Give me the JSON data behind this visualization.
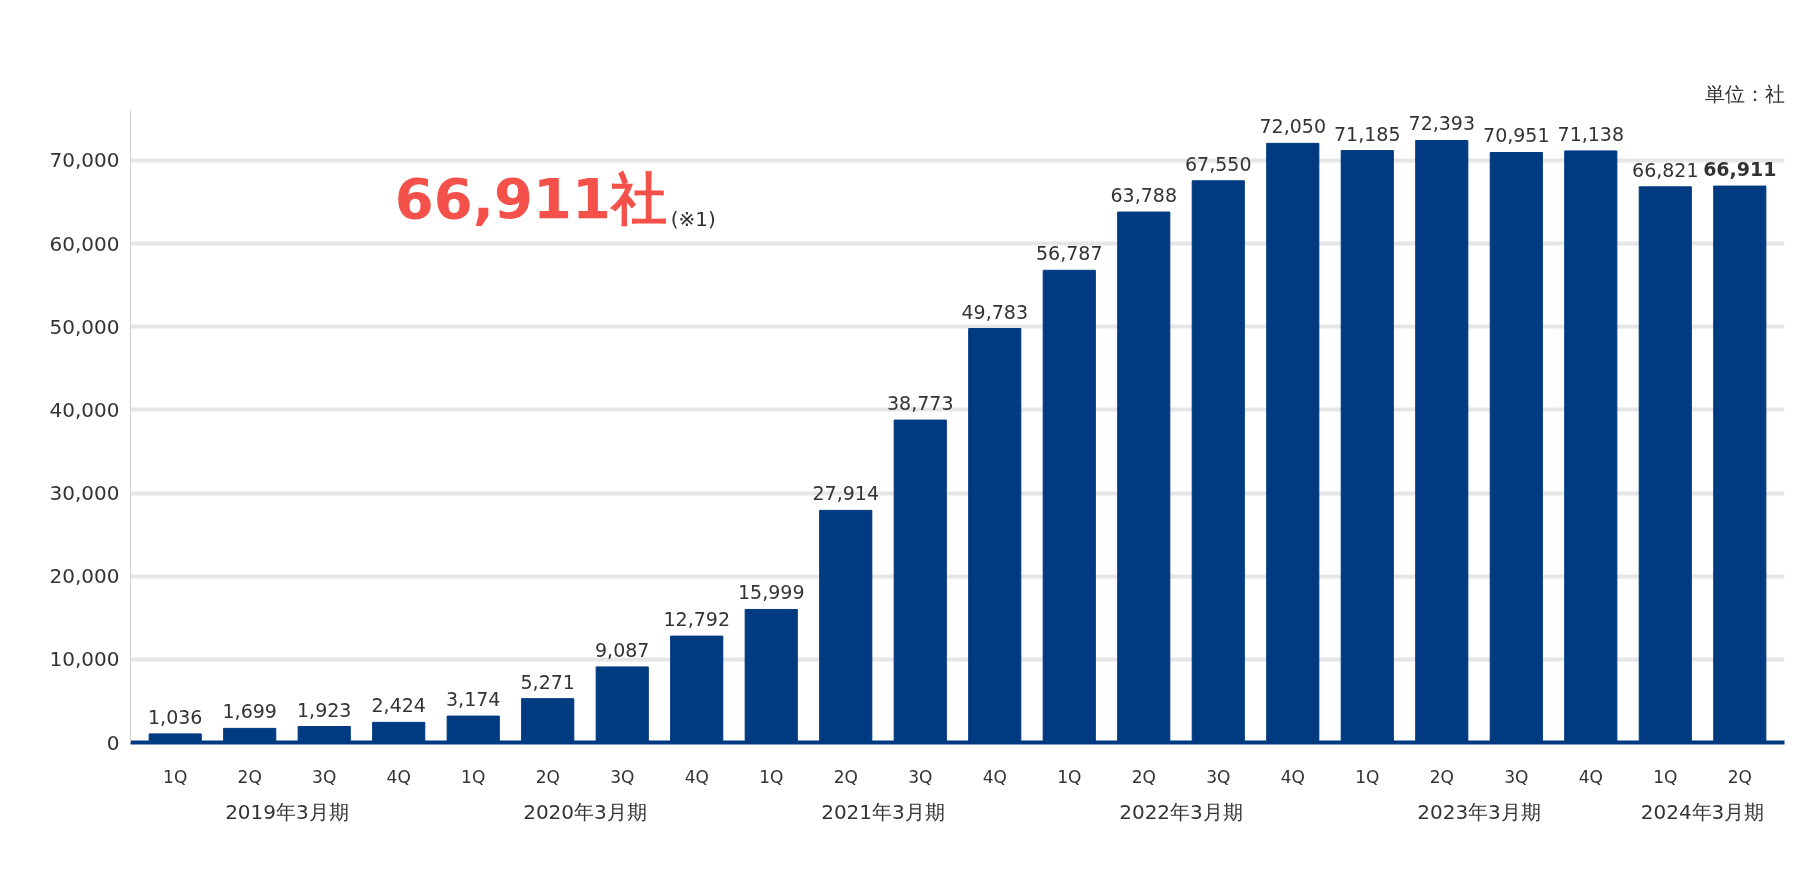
{
  "chart_data": {
    "type": "bar",
    "categories": [
      "1Q",
      "2Q",
      "3Q",
      "4Q",
      "1Q",
      "2Q",
      "3Q",
      "4Q",
      "1Q",
      "2Q",
      "3Q",
      "4Q",
      "1Q",
      "2Q",
      "3Q",
      "4Q",
      "1Q",
      "2Q",
      "3Q",
      "4Q",
      "1Q",
      "2Q"
    ],
    "values": [
      1036,
      1699,
      1923,
      2424,
      3174,
      5271,
      9087,
      12792,
      15999,
      27914,
      38773,
      49783,
      56787,
      63788,
      67550,
      72050,
      71185,
      72393,
      70951,
      71138,
      66821,
      66911
    ],
    "color": "#003a80",
    "ylim": [
      0,
      76000
    ],
    "yticks": [
      {
        "value": 0,
        "label": "0"
      },
      {
        "value": 10000,
        "label": "10,000"
      },
      {
        "value": 20000,
        "label": "20,000"
      },
      {
        "value": 30000,
        "label": "30,000"
      },
      {
        "value": 40000,
        "label": "40,000"
      },
      {
        "value": 50000,
        "label": "50,000"
      },
      {
        "value": 60000,
        "label": "60,000"
      },
      {
        "value": 70000,
        "label": "70,000"
      }
    ],
    "grid": "y",
    "value_labels": [
      "1,036",
      "1,699",
      "1,923",
      "2,424",
      "3,174",
      "5,271",
      "9,087",
      "12,792",
      "15,999",
      "27,914",
      "38,773",
      "49,783",
      "56,787",
      "63,788",
      "67,550",
      "72,050",
      "71,185",
      "72,393",
      "70,951",
      "71,138",
      "66,821",
      "66,911"
    ],
    "annotations": [
      "単位：社",
      "66,911社",
      "(※1)",
      "2019年3月期",
      "2020年3月期",
      "2021年3月期",
      "2022年3月期",
      "2023年3月期",
      "2024年3月期"
    ]
  }
}
